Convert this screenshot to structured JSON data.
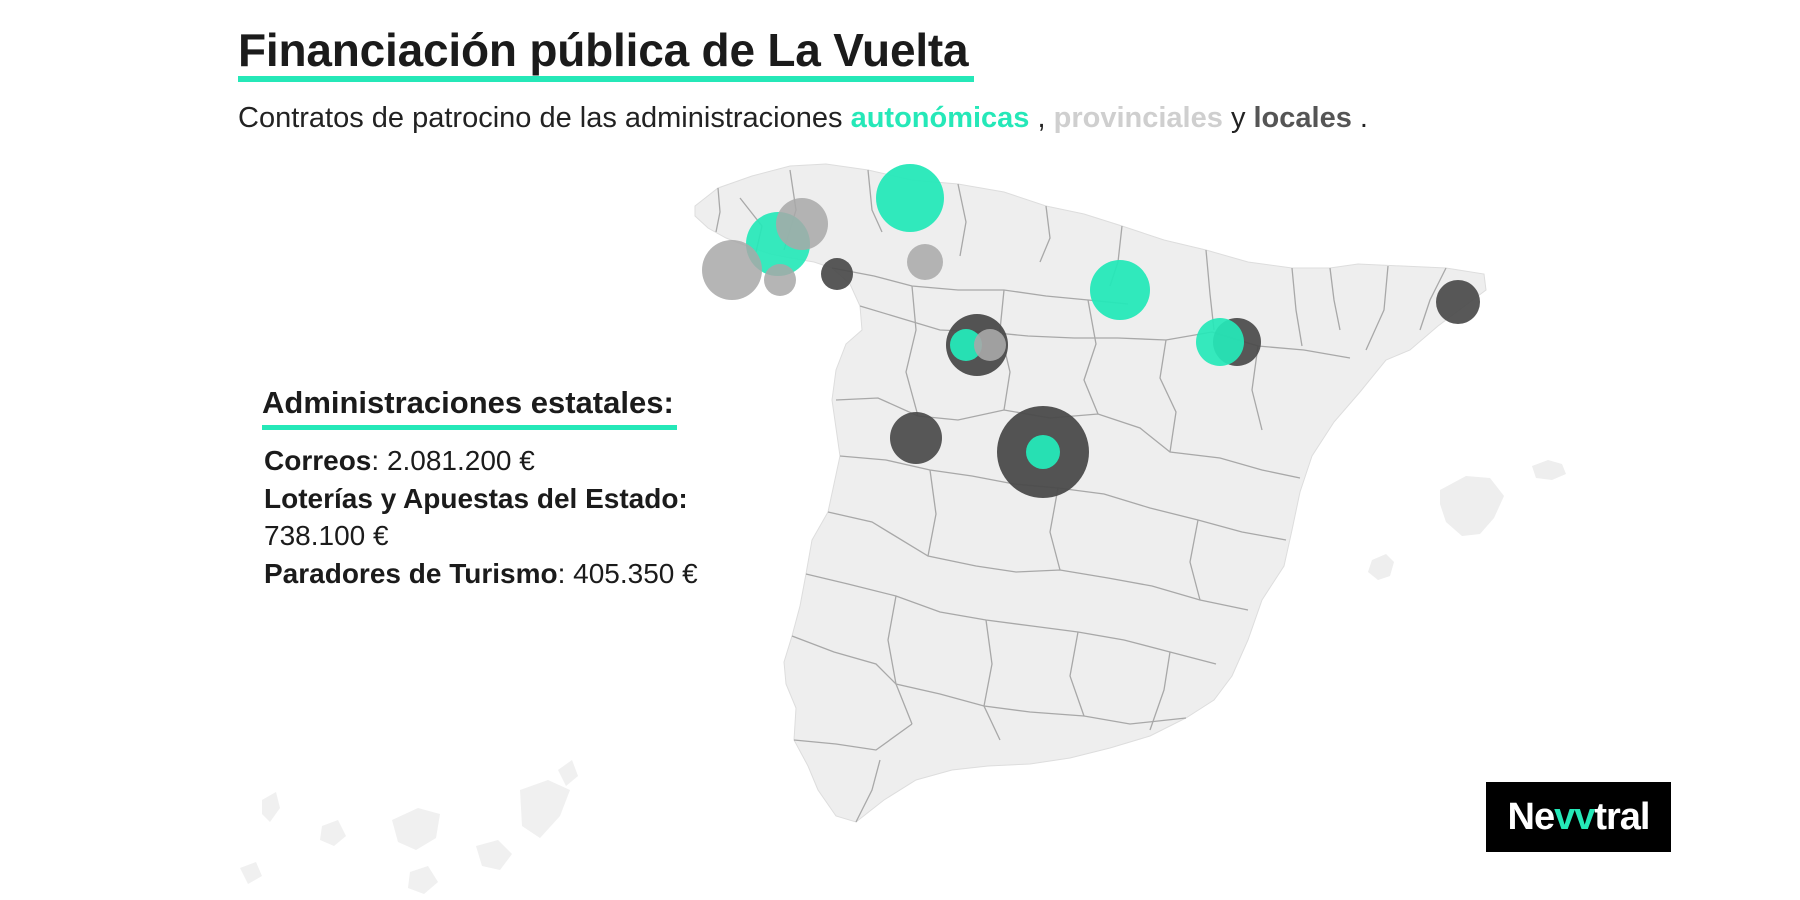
{
  "title": "Financiación pública de La Vuelta",
  "subtitle": {
    "prefix": "Contratos de patrocino de las administraciones",
    "autonomicas": "autonómicas",
    "sep1": ",",
    "provinciales": "provinciales",
    "sep2": "y",
    "locales": "locales",
    "end": "."
  },
  "legend_colors": {
    "autonomicas": "#25e8b8",
    "provinciales": "#b3b3b3",
    "locales": "#4a4a4a"
  },
  "state": {
    "heading": "Administraciones estatales:",
    "items": [
      {
        "name": "Correos",
        "sep": ": ",
        "value": "2.081.200 €"
      },
      {
        "name": "Loterías y Apuestas del Estado:",
        "sep": " ",
        "value": "738.100 €"
      },
      {
        "name": "Paradores de Turismo",
        "sep": ": ",
        "value": "405.350 €"
      }
    ]
  },
  "logo": {
    "part1": "Ne",
    "part2": "vv",
    "part3": "tral"
  }
}
